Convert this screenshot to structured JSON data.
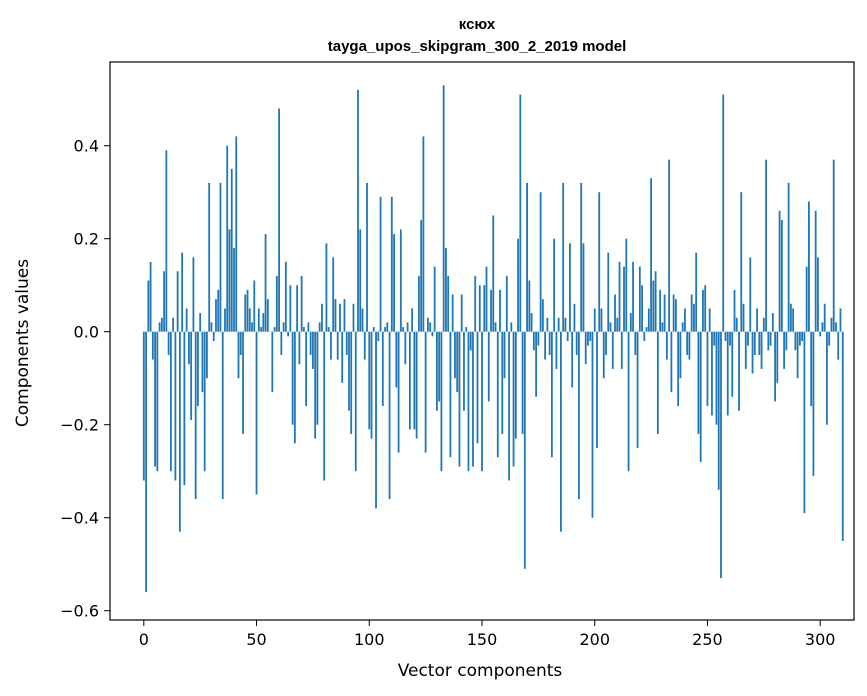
{
  "chart_data": {
    "type": "bar",
    "title": "ксюх",
    "subtitle": "tayga_upos_skipgram_300_2_2019 model",
    "xlabel": "Vector components",
    "ylabel": "Components values",
    "xlim": [
      -15,
      315
    ],
    "ylim": [
      -0.62,
      0.58
    ],
    "xticks": [
      0,
      50,
      100,
      150,
      200,
      250,
      300
    ],
    "xtick_labels": [
      "0",
      "50",
      "100",
      "150",
      "200",
      "250",
      "300"
    ],
    "yticks": [
      -0.6,
      -0.4,
      -0.2,
      0.0,
      0.2,
      0.4
    ],
    "ytick_labels": [
      "−0.6",
      "−0.4",
      "−0.2",
      "0.0",
      "0.2",
      "0.4"
    ],
    "bar_color": "#1f77b4",
    "values": [
      -0.32,
      -0.56,
      0.11,
      0.15,
      -0.06,
      -0.29,
      -0.3,
      0.02,
      0.03,
      0.13,
      0.39,
      -0.05,
      -0.3,
      0.03,
      -0.32,
      0.13,
      -0.43,
      0.17,
      -0.33,
      0.05,
      -0.07,
      -0.19,
      0.16,
      -0.36,
      -0.16,
      0.04,
      -0.13,
      -0.3,
      -0.1,
      0.32,
      0.02,
      -0.02,
      0.07,
      0.09,
      0.32,
      -0.36,
      0.05,
      0.4,
      0.22,
      0.35,
      0.18,
      0.42,
      -0.1,
      -0.05,
      -0.22,
      0.08,
      0.09,
      0.05,
      0.02,
      0.11,
      -0.35,
      0.05,
      0.01,
      0.04,
      0.21,
      0.07,
      0.0,
      -0.13,
      0.01,
      0.12,
      0.48,
      -0.05,
      0.02,
      0.15,
      -0.01,
      0.1,
      -0.2,
      -0.24,
      0.1,
      -0.07,
      0.12,
      0.01,
      -0.16,
      0.02,
      -0.05,
      -0.08,
      -0.23,
      -0.2,
      0.02,
      0.06,
      -0.32,
      0.19,
      0.01,
      -0.06,
      0.16,
      0.07,
      -0.06,
      0.06,
      -0.11,
      0.07,
      -0.05,
      -0.17,
      -0.22,
      0.06,
      -0.3,
      0.52,
      0.22,
      0.05,
      -0.06,
      0.32,
      -0.21,
      -0.23,
      0.01,
      -0.38,
      -0.02,
      0.29,
      -0.16,
      0.01,
      0.02,
      -0.36,
      0.29,
      0.21,
      -0.12,
      -0.26,
      0.22,
      0.01,
      -0.07,
      0.02,
      -0.21,
      0.05,
      -0.21,
      -0.23,
      0.12,
      0.24,
      0.42,
      -0.26,
      0.03,
      0.02,
      -0.01,
      0.14,
      -0.17,
      -0.15,
      -0.3,
      0.53,
      0.18,
      0.12,
      -0.27,
      0.08,
      -0.1,
      -0.13,
      -0.29,
      0.08,
      -0.17,
      0.01,
      -0.3,
      -0.04,
      -0.29,
      0.12,
      -0.24,
      0.1,
      -0.3,
      0.1,
      0.14,
      -0.15,
      0.09,
      0.25,
      0.02,
      -0.27,
      0.09,
      -0.22,
      -0.1,
      0.12,
      -0.32,
      0.02,
      -0.29,
      -0.23,
      0.2,
      0.51,
      -0.22,
      -0.51,
      0.32,
      0.11,
      0.04,
      -0.04,
      -0.14,
      -0.03,
      0.3,
      0.07,
      -0.06,
      0.03,
      -0.05,
      -0.27,
      0.2,
      -0.08,
      0.03,
      -0.43,
      0.32,
      0.03,
      -0.02,
      0.19,
      -0.12,
      0.06,
      -0.05,
      -0.36,
      0.32,
      0.19,
      -0.07,
      -0.03,
      -0.02,
      -0.4,
      0.05,
      -0.25,
      0.3,
      0.05,
      -0.1,
      -0.05,
      0.17,
      0.02,
      -0.08,
      0.08,
      0.03,
      0.15,
      -0.08,
      0.14,
      0.2,
      -0.3,
      0.04,
      0.15,
      -0.05,
      -0.25,
      0.14,
      0.1,
      -0.02,
      0.01,
      0.05,
      0.33,
      0.11,
      0.13,
      -0.22,
      0.09,
      0.02,
      0.08,
      -0.06,
      0.37,
      -0.13,
      0.08,
      0.07,
      -0.16,
      -0.1,
      0.02,
      0.05,
      -0.05,
      -0.06,
      0.08,
      0.06,
      0.17,
      -0.22,
      -0.28,
      0.09,
      0.1,
      -0.16,
      0.05,
      -0.18,
      -0.03,
      -0.2,
      -0.34,
      -0.53,
      0.51,
      -0.02,
      -0.18,
      -0.03,
      -0.14,
      0.09,
      0.03,
      -0.17,
      0.3,
      0.06,
      -0.08,
      -0.03,
      0.16,
      -0.09,
      -0.05,
      0.05,
      -0.05,
      -0.08,
      0.03,
      0.37,
      -0.04,
      -0.03,
      0.04,
      -0.15,
      -0.11,
      0.26,
      0.24,
      -0.08,
      -0.04,
      0.32,
      0.06,
      0.05,
      -0.04,
      -0.1,
      -0.03,
      -0.02,
      -0.39,
      0.14,
      0.28,
      -0.16,
      -0.31,
      0.26,
      0.16,
      -0.01,
      0.02,
      0.06,
      -0.2,
      -0.03,
      0.03,
      0.37,
      0.02,
      -0.06,
      0.05,
      -0.45
    ]
  }
}
